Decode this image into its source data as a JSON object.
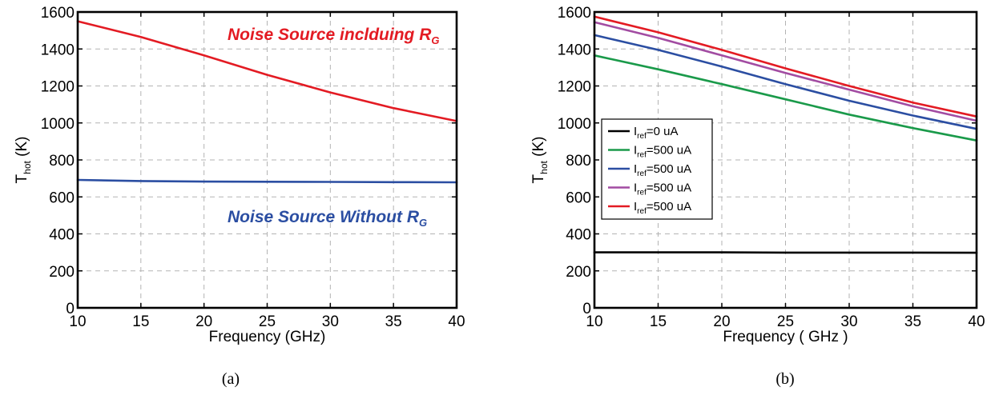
{
  "chart_data": [
    {
      "type": "line",
      "panel_label": "(a)",
      "xlabel": "Frequency (GHz)",
      "ylabel": {
        "main": "T",
        "sub": "hot",
        "unit": " (K)"
      },
      "xlim": [
        10,
        40
      ],
      "ylim": [
        0,
        1600
      ],
      "xticks": [
        "10",
        "15",
        "20",
        "25",
        "30",
        "35",
        "40"
      ],
      "yticks": [
        "0",
        "200",
        "400",
        "600",
        "800",
        "1000",
        "1200",
        "1400",
        "1600"
      ],
      "grid": true,
      "series": [
        {
          "color": "#e31b23",
          "x": [
            10,
            15,
            20,
            25,
            30,
            35,
            40
          ],
          "y": [
            1550,
            1465,
            1365,
            1260,
            1165,
            1080,
            1010
          ]
        },
        {
          "color": "#2b4ea2",
          "x": [
            10,
            15,
            20,
            25,
            30,
            35,
            40
          ],
          "y": [
            692,
            686,
            683,
            682,
            681,
            680,
            679
          ]
        }
      ],
      "annotations": [
        {
          "text": "Noise Source inclduing R",
          "sub": "G",
          "color": "#e31b23"
        },
        {
          "text": "Noise Source Without R",
          "sub": "G",
          "color": "#2b4ea2"
        }
      ]
    },
    {
      "type": "line",
      "panel_label": "(b)",
      "xlabel": "Frequency ( GHz )",
      "ylabel": {
        "main": "T",
        "sub": "hot",
        "unit": " (K)"
      },
      "xlim": [
        10,
        40
      ],
      "ylim": [
        0,
        1600
      ],
      "xticks": [
        "10",
        "15",
        "20",
        "25",
        "30",
        "35",
        "40"
      ],
      "yticks": [
        "0",
        "200",
        "400",
        "600",
        "800",
        "1000",
        "1200",
        "1400",
        "1600"
      ],
      "grid": true,
      "legend_position": "left",
      "series": [
        {
          "name_main": "I",
          "name_sub": "ref",
          "name_rest": "=0 uA",
          "color": "#000000",
          "x": [
            10,
            15,
            20,
            25,
            30,
            35,
            40
          ],
          "y": [
            300,
            300,
            300,
            299,
            299,
            299,
            298
          ]
        },
        {
          "name_main": "I",
          "name_sub": "ref",
          "name_rest": "=500 uA",
          "color": "#1a9a4a",
          "x": [
            10,
            15,
            20,
            25,
            30,
            35,
            40
          ],
          "y": [
            1365,
            1290,
            1210,
            1128,
            1045,
            972,
            905
          ]
        },
        {
          "name_main": "I",
          "name_sub": "ref",
          "name_rest": "=500 uA",
          "color": "#2b4ea2",
          "x": [
            10,
            15,
            20,
            25,
            30,
            35,
            40
          ],
          "y": [
            1475,
            1395,
            1305,
            1210,
            1120,
            1040,
            968
          ]
        },
        {
          "name_main": "I",
          "name_sub": "ref",
          "name_rest": "=500 uA",
          "color": "#a24ca2",
          "x": [
            10,
            15,
            20,
            25,
            30,
            35,
            40
          ],
          "y": [
            1545,
            1460,
            1365,
            1270,
            1180,
            1090,
            1012
          ]
        },
        {
          "name_main": "I",
          "name_sub": "ref",
          "name_rest": "=500 uA",
          "color": "#e31b23",
          "x": [
            10,
            15,
            20,
            25,
            30,
            35,
            40
          ],
          "y": [
            1575,
            1490,
            1395,
            1295,
            1200,
            1110,
            1035
          ]
        }
      ]
    }
  ]
}
